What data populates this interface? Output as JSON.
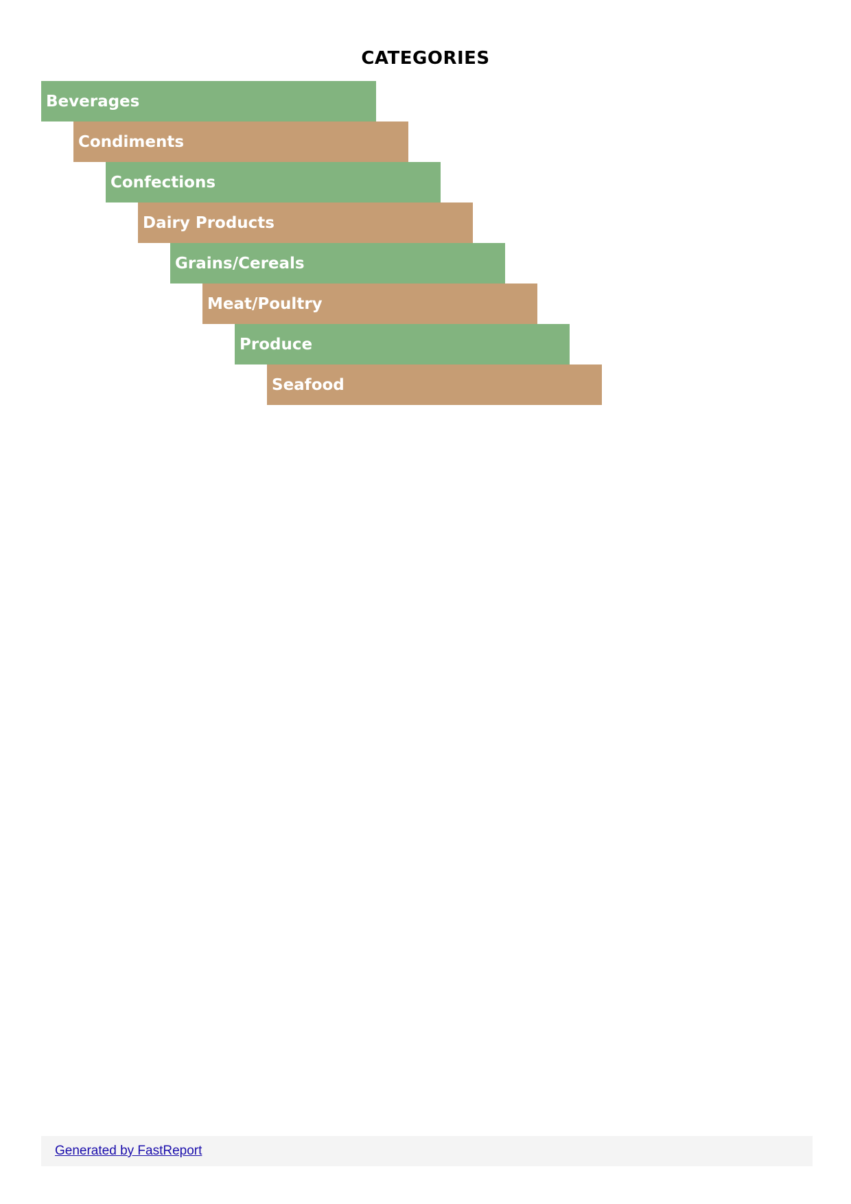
{
  "report": {
    "title": "CATEGORIES",
    "colors": {
      "odd_band": "#82b47f",
      "even_band": "#c69d74"
    },
    "categories": [
      "Beverages",
      "Condiments",
      "Confections",
      "Dairy Products",
      "Grains/Cereals",
      "Meat/Poultry",
      "Produce",
      "Seafood"
    ]
  },
  "footer": {
    "link_text": "Generated by FastReport"
  }
}
